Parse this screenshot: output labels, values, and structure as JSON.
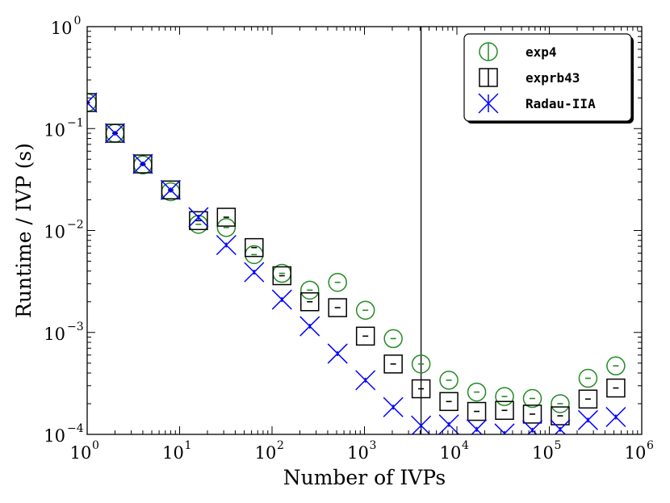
{
  "chart_data": {
    "type": "scatter",
    "title": "",
    "xlabel": "Number of IVPs",
    "ylabel": "Runtime / IVP (s)",
    "xscale": "log",
    "yscale": "log",
    "xlim": [
      1,
      1000000
    ],
    "ylim": [
      0.0001,
      1
    ],
    "x_ticks": [
      {
        "value": 1,
        "base": "10",
        "exp": "0"
      },
      {
        "value": 10,
        "base": "10",
        "exp": "1"
      },
      {
        "value": 100,
        "base": "10",
        "exp": "2"
      },
      {
        "value": 1000,
        "base": "10",
        "exp": "3"
      },
      {
        "value": 10000,
        "base": "10",
        "exp": "4"
      },
      {
        "value": 100000,
        "base": "10",
        "exp": "5"
      },
      {
        "value": 1000000,
        "base": "10",
        "exp": "6"
      }
    ],
    "y_ticks": [
      {
        "value": 0.0001,
        "base": "10",
        "exp": "−4"
      },
      {
        "value": 0.001,
        "base": "10",
        "exp": "−3"
      },
      {
        "value": 0.01,
        "base": "10",
        "exp": "−2"
      },
      {
        "value": 0.1,
        "base": "10",
        "exp": "−1"
      },
      {
        "value": 1,
        "base": "10",
        "exp": "0"
      }
    ],
    "vertical_line_x": 4096,
    "legend_position": "top-right",
    "grid": false,
    "series": [
      {
        "name": "exp4",
        "marker": "circle",
        "color": "#228B22",
        "points": [
          {
            "x": 1,
            "y": 0.18
          },
          {
            "x": 2,
            "y": 0.09
          },
          {
            "x": 4,
            "y": 0.044
          },
          {
            "x": 8,
            "y": 0.024
          },
          {
            "x": 16,
            "y": 0.0115
          },
          {
            "x": 32,
            "y": 0.0107
          },
          {
            "x": 64,
            "y": 0.0058
          },
          {
            "x": 128,
            "y": 0.0038
          },
          {
            "x": 256,
            "y": 0.0026
          },
          {
            "x": 512,
            "y": 0.0031
          },
          {
            "x": 1024,
            "y": 0.00165
          },
          {
            "x": 2048,
            "y": 0.00087
          },
          {
            "x": 4096,
            "y": 0.00049
          },
          {
            "x": 8192,
            "y": 0.00034
          },
          {
            "x": 16384,
            "y": 0.00026
          },
          {
            "x": 32768,
            "y": 0.000235
          },
          {
            "x": 65536,
            "y": 0.000225
          },
          {
            "x": 131072,
            "y": 0.0002
          },
          {
            "x": 262144,
            "y": 0.000355
          },
          {
            "x": 524288,
            "y": 0.00047
          }
        ]
      },
      {
        "name": "exprb43",
        "marker": "square",
        "color": "#000000",
        "points": [
          {
            "x": 1,
            "y": 0.18
          },
          {
            "x": 2,
            "y": 0.09
          },
          {
            "x": 4,
            "y": 0.045
          },
          {
            "x": 8,
            "y": 0.025
          },
          {
            "x": 16,
            "y": 0.0125
          },
          {
            "x": 32,
            "y": 0.0135
          },
          {
            "x": 64,
            "y": 0.0068
          },
          {
            "x": 128,
            "y": 0.0036
          },
          {
            "x": 256,
            "y": 0.002
          },
          {
            "x": 512,
            "y": 0.00175
          },
          {
            "x": 1024,
            "y": 0.00092
          },
          {
            "x": 2048,
            "y": 0.00049
          },
          {
            "x": 4096,
            "y": 0.00028
          },
          {
            "x": 8192,
            "y": 0.00021
          },
          {
            "x": 16384,
            "y": 0.000168
          },
          {
            "x": 32768,
            "y": 0.000172
          },
          {
            "x": 65536,
            "y": 0.000158
          },
          {
            "x": 131072,
            "y": 0.000152
          },
          {
            "x": 262144,
            "y": 0.000222
          },
          {
            "x": 524288,
            "y": 0.000285
          }
        ]
      },
      {
        "name": "Radau-IIA",
        "marker": "x",
        "color": "#0000FF",
        "points": [
          {
            "x": 1,
            "y": 0.18
          },
          {
            "x": 2,
            "y": 0.09
          },
          {
            "x": 4,
            "y": 0.045
          },
          {
            "x": 8,
            "y": 0.025
          },
          {
            "x": 16,
            "y": 0.0135
          },
          {
            "x": 32,
            "y": 0.0072
          },
          {
            "x": 64,
            "y": 0.0039
          },
          {
            "x": 128,
            "y": 0.0021
          },
          {
            "x": 256,
            "y": 0.00115
          },
          {
            "x": 512,
            "y": 0.00062
          },
          {
            "x": 1024,
            "y": 0.00034
          },
          {
            "x": 2048,
            "y": 0.000185
          },
          {
            "x": 4096,
            "y": 0.000122
          },
          {
            "x": 8192,
            "y": 0.000125
          },
          {
            "x": 16384,
            "y": 0.000112
          },
          {
            "x": 32768,
            "y": 0.000102
          },
          {
            "x": 65536,
            "y": 0.00011
          },
          {
            "x": 131072,
            "y": 0.000112
          },
          {
            "x": 262144,
            "y": 0.000138
          },
          {
            "x": 524288,
            "y": 0.000148
          }
        ]
      }
    ]
  }
}
